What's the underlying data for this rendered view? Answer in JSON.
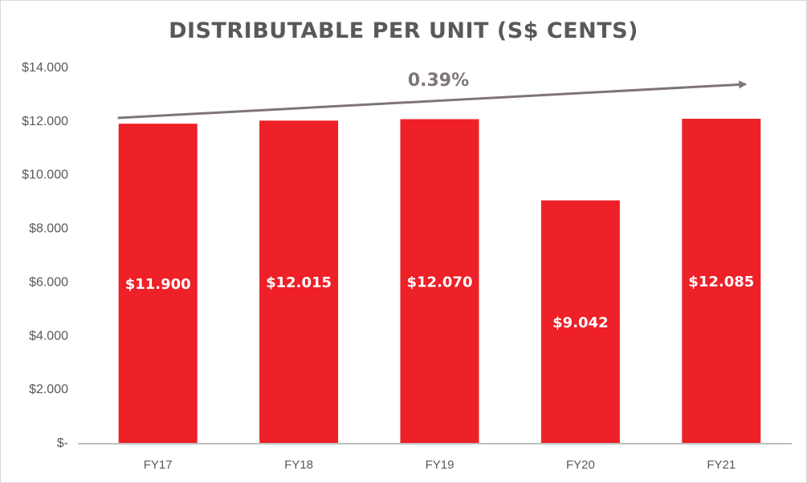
{
  "chart_data": {
    "type": "bar",
    "title": "DISTRIBUTABLE PER UNIT (S$ CENTS)",
    "categories": [
      "FY17",
      "FY18",
      "FY19",
      "FY20",
      "FY21"
    ],
    "values": [
      11.9,
      12.015,
      12.07,
      9.042,
      12.085
    ],
    "data_labels": [
      "$11.900",
      "$12.015",
      "$12.070",
      "$9.042",
      "$12.085"
    ],
    "ylim": [
      0,
      14
    ],
    "yticks": [
      0,
      2,
      4,
      6,
      8,
      10,
      12,
      14
    ],
    "ytick_labels": [
      "$-",
      "$2.000",
      "$4.000",
      "$6.000",
      "$8.000",
      "$10.000",
      "$12.000",
      "$14.000"
    ],
    "xlabel": "",
    "ylabel": "",
    "grid": false,
    "legend": "none",
    "bar_color": "#ee2028",
    "annotation": {
      "text": "0.39%",
      "type": "trend-arrow",
      "from": "FY17",
      "to": "FY21",
      "color": "#7f7575"
    }
  }
}
